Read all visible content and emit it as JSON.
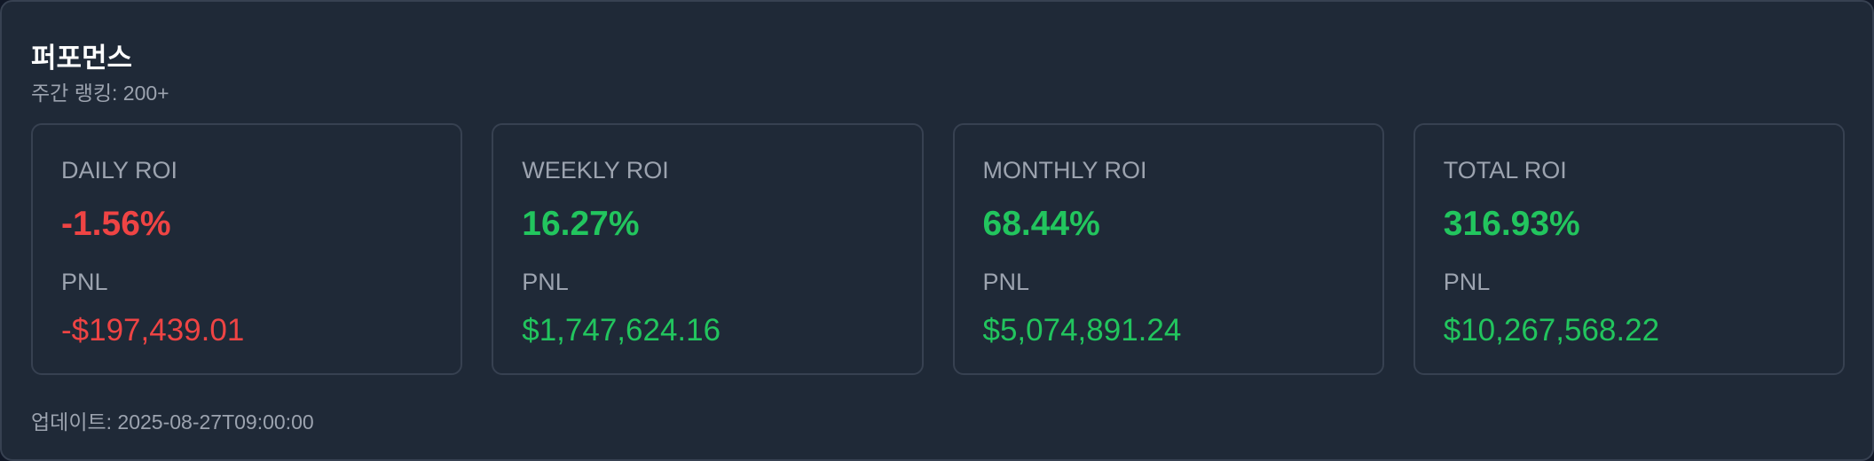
{
  "header": {
    "title": "퍼포먼스",
    "subtitle": "주간 랭킹: 200+"
  },
  "cards": [
    {
      "label": "DAILY ROI",
      "roi": "-1.56%",
      "pnl_label": "PNL",
      "pnl": "-$197,439.01",
      "color": "#ef4444"
    },
    {
      "label": "WEEKLY ROI",
      "roi": "16.27%",
      "pnl_label": "PNL",
      "pnl": "$1,747,624.16",
      "color": "#22c55e"
    },
    {
      "label": "MONTHLY ROI",
      "roi": "68.44%",
      "pnl_label": "PNL",
      "pnl": "$5,074,891.24",
      "color": "#22c55e"
    },
    {
      "label": "TOTAL ROI",
      "roi": "316.93%",
      "pnl_label": "PNL",
      "pnl": "$10,267,568.22",
      "color": "#22c55e"
    }
  ],
  "footer": "업데이트: 2025-08-27T09:00:00"
}
